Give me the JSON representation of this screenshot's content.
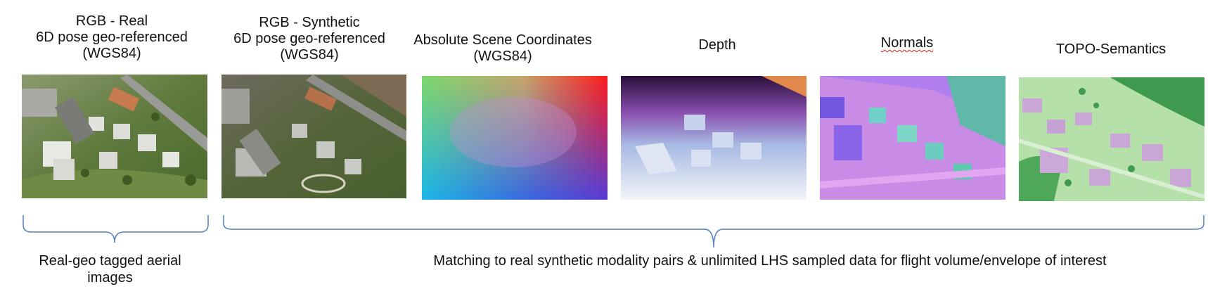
{
  "panels": [
    {
      "id": "rgb-real",
      "lines": [
        "RGB - Real",
        "6D pose geo-referenced",
        "(WGS84)"
      ]
    },
    {
      "id": "rgb-synthetic",
      "lines": [
        "RGB - Synthetic",
        "6D pose geo-referenced",
        "(WGS84)"
      ]
    },
    {
      "id": "scene-coords",
      "lines": [
        "Absolute Scene Coordinates",
        "(WGS84)"
      ]
    },
    {
      "id": "depth",
      "lines": [
        "Depth"
      ]
    },
    {
      "id": "normals",
      "lines": [
        "Normals"
      ]
    },
    {
      "id": "topo",
      "lines": [
        "TOPO-Semantics"
      ]
    }
  ],
  "groups": {
    "left_caption": [
      "Real-geo tagged aerial",
      "images"
    ],
    "right_caption": "Matching to real synthetic modality pairs & unlimited LHS sampled data for flight volume/envelope of interest"
  },
  "colors": {
    "bracket": "#4f7fbf",
    "spellcheck_underline": "#d22222"
  }
}
